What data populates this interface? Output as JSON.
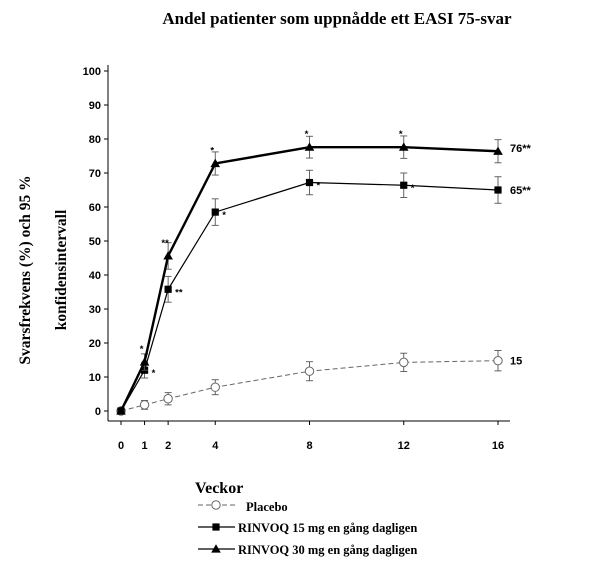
{
  "chart_data": {
    "type": "line",
    "title": "Andel patienter som uppnådde ett EASI 75-svar",
    "xlabel": "Veckor",
    "ylabel_line1": "Svarsfrekvens (%) och 95 %",
    "ylabel_line2": "konfidensintervall",
    "x": [
      0,
      1,
      2,
      4,
      8,
      12,
      16
    ],
    "x_ticks": [
      "0",
      "1",
      "2",
      "4",
      "8",
      "12",
      "16"
    ],
    "y_ticks": [
      "0",
      "10",
      "20",
      "30",
      "40",
      "50",
      "60",
      "70",
      "80",
      "90",
      "100"
    ],
    "ylim": [
      0,
      100
    ],
    "xlim": [
      0,
      16
    ],
    "series": [
      {
        "name": "Placebo",
        "marker": "open-circle",
        "line": "dashed",
        "values": [
          0,
          1.8,
          3.6,
          7.0,
          11.7,
          14.3,
          14.8
        ],
        "ci_low": [
          0,
          0.5,
          1.8,
          4.8,
          8.9,
          11.6,
          11.8
        ],
        "ci_high": [
          0,
          3.1,
          5.4,
          9.2,
          14.5,
          17.0,
          17.8
        ],
        "significance": [
          "",
          "",
          "",
          "",
          "",
          "",
          ""
        ],
        "end_label": "15"
      },
      {
        "name": "RINVOQ 15 mg en gång dagligen",
        "marker": "filled-square",
        "line": "solid",
        "values": [
          0,
          12.0,
          35.8,
          58.5,
          67.2,
          66.4,
          65.0
        ],
        "ci_low": [
          0,
          9.7,
          32.0,
          54.6,
          63.6,
          62.8,
          61.1
        ],
        "ci_high": [
          0,
          14.3,
          39.6,
          62.4,
          70.8,
          70.0,
          68.9
        ],
        "significance": [
          "",
          "*",
          "**",
          "*",
          "*",
          "*",
          ""
        ],
        "end_label": "65**"
      },
      {
        "name": "RINVOQ 30 mg en gång dagligen",
        "marker": "filled-triangle",
        "line": "solid",
        "values": [
          0,
          14.4,
          45.6,
          72.8,
          77.6,
          77.6,
          76.4
        ],
        "ci_low": [
          0,
          12.0,
          41.7,
          69.4,
          74.4,
          74.3,
          73.0
        ],
        "ci_high": [
          0,
          16.8,
          49.5,
          76.2,
          80.8,
          80.9,
          79.8
        ],
        "significance": [
          "",
          "*",
          "**",
          "*",
          "*",
          "*",
          ""
        ],
        "end_label": "76**"
      }
    ]
  }
}
